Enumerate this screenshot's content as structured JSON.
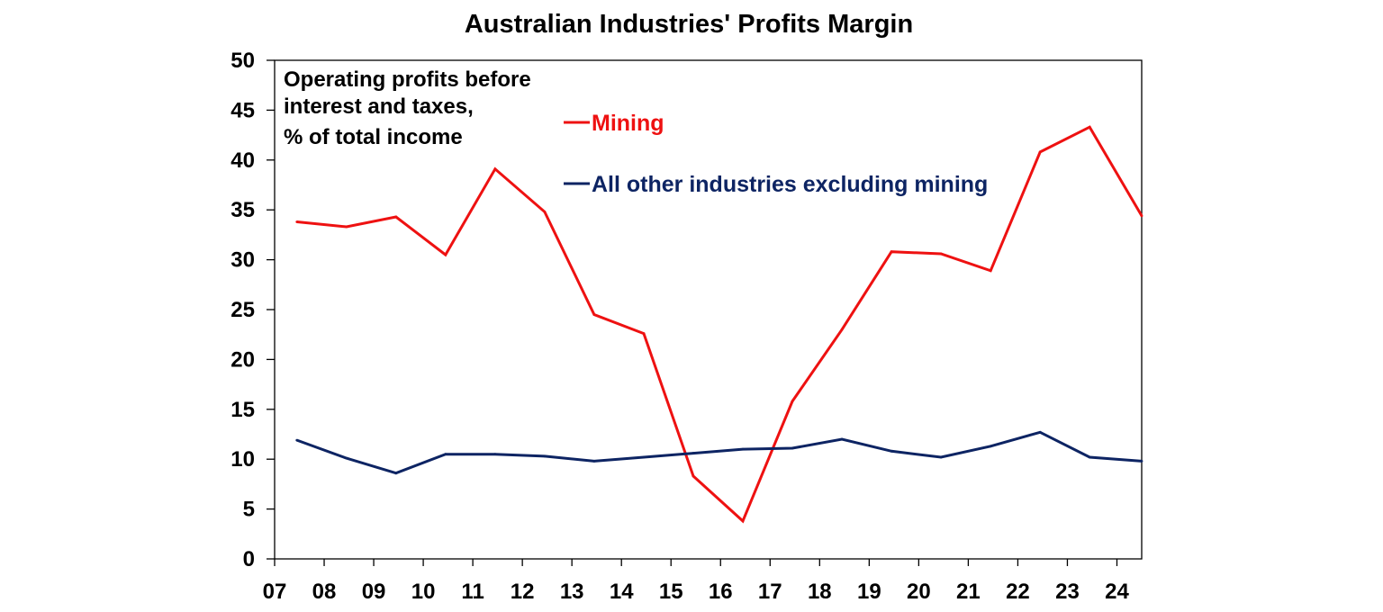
{
  "chart_data": {
    "type": "line",
    "title": "Australian Industries' Profits Margin",
    "annotation": [
      "Operating profits before",
      "interest and taxes,",
      "% of total income"
    ],
    "x_tick_labels": [
      "07",
      "08",
      "09",
      "10",
      "11",
      "12",
      "13",
      "14",
      "15",
      "16",
      "17",
      "18",
      "19",
      "20",
      "21",
      "22",
      "23",
      "24"
    ],
    "xlim": [
      2007,
      2024.5
    ],
    "ylim": [
      0,
      50
    ],
    "y_ticks": [
      0,
      5,
      10,
      15,
      20,
      25,
      30,
      35,
      40,
      45,
      50
    ],
    "grid": false,
    "legend_placement": "top-center",
    "x": [
      2007.45,
      2008.45,
      2009.45,
      2010.45,
      2011.45,
      2012.45,
      2013.45,
      2014.45,
      2015.45,
      2016.45,
      2017.45,
      2018.45,
      2019.45,
      2020.45,
      2021.45,
      2022.45,
      2023.45,
      2024.5
    ],
    "series": [
      {
        "name": "Mining",
        "color": "#ee1111",
        "values": [
          33.8,
          33.3,
          34.3,
          30.5,
          39.1,
          34.8,
          24.5,
          22.6,
          8.3,
          3.8,
          15.8,
          23.0,
          30.8,
          30.6,
          28.9,
          40.8,
          43.3,
          34.4
        ]
      },
      {
        "name": "All other industries excluding mining",
        "color": "#0d2463",
        "values": [
          11.9,
          10.1,
          8.6,
          10.5,
          10.5,
          10.3,
          9.8,
          10.2,
          10.6,
          11.0,
          11.1,
          12.0,
          10.8,
          10.2,
          11.3,
          12.7,
          10.2,
          9.8
        ]
      }
    ]
  }
}
